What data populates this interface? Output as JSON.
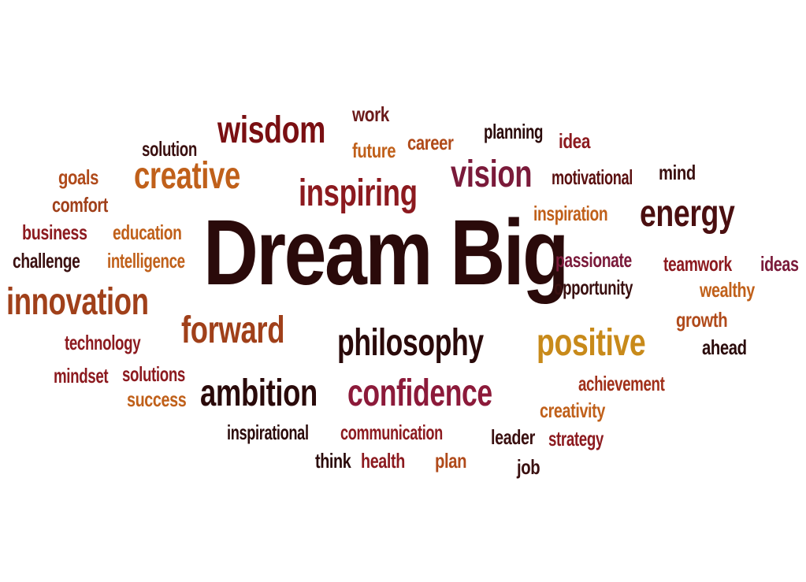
{
  "colors": {
    "background": "#ffffff",
    "dark": "#2a0a0a",
    "maroon": "#7a0f12",
    "crimson": "#8c1a1f",
    "plum": "#7a1a3a",
    "brown": "#6b2a1a",
    "rust": "#b04a1a",
    "orange": "#c0601a",
    "gold": "#c88a1a"
  },
  "words": {
    "dream_big": "Dream Big",
    "wisdom": "wisdom",
    "work": "work",
    "solution": "solution",
    "future": "future",
    "career": "career",
    "planning": "planning",
    "idea": "idea",
    "goals": "goals",
    "creative": "creative",
    "inspiring": "inspiring",
    "vision": "vision",
    "motivational": "motivational",
    "mind": "mind",
    "comfort": "comfort",
    "inspiration": "inspiration",
    "energy": "energy",
    "business": "business",
    "education": "education",
    "challenge": "challenge",
    "intelligence": "intelligence",
    "passionate": "passionate",
    "teamwork": "teamwork",
    "ideas": "ideas",
    "opportunity": "opportunity",
    "wealthy": "wealthy",
    "innovation": "innovation",
    "growth": "growth",
    "forward": "forward",
    "philosophy": "philosophy",
    "positive": "positive",
    "technology": "technology",
    "ahead": "ahead",
    "mindset": "mindset",
    "solutions": "solutions",
    "achievement": "achievement",
    "success": "success",
    "ambition": "ambition",
    "confidence": "confidence",
    "creativity": "creativity",
    "inspirational": "inspirational",
    "communication": "communication",
    "leader": "leader",
    "strategy": "strategy",
    "think": "think",
    "health": "health",
    "plan": "plan",
    "job": "job"
  }
}
